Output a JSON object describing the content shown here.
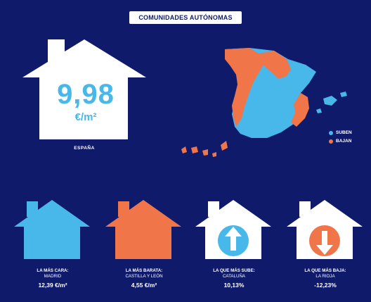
{
  "header": {
    "title": "COMUNIDADES AUTÓNOMAS"
  },
  "national": {
    "value": "9,98",
    "unit": "€/m²",
    "label": "ESPAÑA"
  },
  "legend": {
    "items": [
      {
        "label": "SUBEN",
        "color": "#48b7ea"
      },
      {
        "label": "BAJAN",
        "color": "#f0764a"
      }
    ]
  },
  "cards": [
    {
      "title": "LA MÁS CARA:",
      "region": "MADRID",
      "value": "12,39 €/m²",
      "color": "#48b7ea",
      "icon": "none"
    },
    {
      "title": "LA MÁS BARATA:",
      "region": "CASTILLA Y LEÓN",
      "value": "4,55 €/m²",
      "color": "#f0764a",
      "icon": "none"
    },
    {
      "title": "LA QUE MÁS SUBE:",
      "region": "CATALUÑA",
      "value": "10,13%",
      "color": "#ffffff",
      "icon": "arrow-up-icon"
    },
    {
      "title": "LA QUE MÁS BAJA:",
      "region": "LA RIOJA",
      "value": "-12,23%",
      "color": "#ffffff",
      "icon": "arrow-down-icon"
    }
  ],
  "colors": {
    "background": "#0f1a6b",
    "suben": "#48b7ea",
    "bajan": "#f0764a",
    "house": "#ffffff"
  }
}
